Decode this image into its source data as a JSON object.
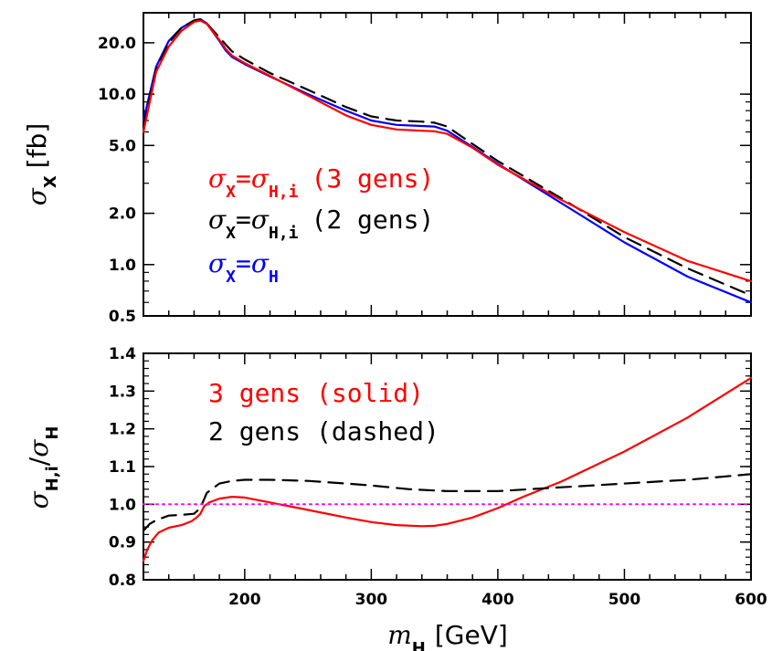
{
  "chart_data": [
    {
      "type": "line",
      "panel": "top",
      "yscale": "log",
      "xlim": [
        120,
        600
      ],
      "ylim": [
        0.5,
        30
      ],
      "yticks": [
        0.5,
        1.0,
        2.0,
        5.0,
        10.0,
        20.0
      ],
      "ytick_labels": [
        "0.5",
        "1.0",
        "2.0",
        "5.0",
        "10.0",
        "20.0"
      ],
      "ylabel": {
        "sym": "σ",
        "sub": "X",
        "unit": "[fb]"
      },
      "legend": [
        {
          "lhs": "σ",
          "lhs_sub": "X",
          "eq": "=",
          "rhs": "σ",
          "rhs_sub": "H,i",
          "note": "(3 gens)",
          "color": "#ff0000"
        },
        {
          "lhs": "σ",
          "lhs_sub": "X",
          "eq": "=",
          "rhs": "σ",
          "rhs_sub": "H,i",
          "note": "(2 gens)",
          "color": "#000000"
        },
        {
          "lhs": "σ",
          "lhs_sub": "X",
          "eq": "=",
          "rhs": "σ",
          "rhs_sub": "H",
          "note": "",
          "color": "#0000ff"
        }
      ],
      "series": [
        {
          "color": "#0000ff",
          "style": "solid",
          "x": [
            120,
            130,
            140,
            150,
            160,
            165,
            170,
            180,
            185,
            190,
            200,
            220,
            250,
            280,
            300,
            320,
            340,
            350,
            360,
            380,
            400,
            450,
            500,
            550,
            600
          ],
          "y": [
            7.0,
            14.5,
            20.5,
            24.5,
            27.0,
            27.5,
            26.0,
            20.5,
            18.0,
            16.5,
            15.0,
            12.7,
            10.0,
            8.0,
            7.0,
            6.6,
            6.5,
            6.45,
            6.1,
            4.9,
            3.9,
            2.3,
            1.35,
            0.85,
            0.6
          ]
        },
        {
          "color": "#000000",
          "style": "dashed",
          "x": [
            120,
            130,
            140,
            150,
            160,
            165,
            170,
            180,
            185,
            190,
            200,
            220,
            250,
            280,
            300,
            320,
            340,
            350,
            360,
            380,
            400,
            450,
            500,
            550,
            600
          ],
          "y": [
            6.5,
            14.0,
            20.0,
            24.5,
            27.0,
            27.5,
            26.0,
            21.5,
            19.5,
            17.8,
            16.0,
            13.3,
            10.6,
            8.4,
            7.4,
            7.0,
            6.9,
            6.8,
            6.45,
            5.1,
            4.05,
            2.45,
            1.45,
            0.95,
            0.66
          ]
        },
        {
          "color": "#ff0000",
          "style": "solid",
          "x": [
            120,
            130,
            140,
            150,
            160,
            165,
            170,
            180,
            185,
            190,
            200,
            220,
            250,
            280,
            300,
            320,
            340,
            350,
            360,
            380,
            400,
            450,
            500,
            550,
            600
          ],
          "y": [
            6.0,
            13.5,
            19.0,
            23.5,
            26.5,
            27.0,
            25.8,
            20.8,
            18.4,
            16.8,
            15.2,
            12.8,
            9.8,
            7.5,
            6.6,
            6.2,
            6.1,
            6.05,
            5.85,
            4.85,
            3.85,
            2.4,
            1.55,
            1.05,
            0.8
          ]
        }
      ]
    },
    {
      "type": "line",
      "panel": "bottom",
      "xlim": [
        120,
        600
      ],
      "ylim": [
        0.8,
        1.4
      ],
      "xticks": [
        200,
        300,
        400,
        500,
        600
      ],
      "xtick_labels": [
        "200",
        "300",
        "400",
        "500",
        "600"
      ],
      "yticks": [
        0.8,
        0.9,
        1.0,
        1.1,
        1.2,
        1.3,
        1.4
      ],
      "ytick_labels": [
        "0.8",
        "0.9",
        "1.0",
        "1.1",
        "1.2",
        "1.3",
        "1.4"
      ],
      "xlabel": {
        "sym": "m",
        "sub": "H",
        "unit": "[GeV]"
      },
      "ylabel": {
        "sym": "σ",
        "sub": "H,i",
        "slash": "/",
        "sym2": "σ",
        "sub2": "H"
      },
      "legend": [
        {
          "text": "3 gens (solid)",
          "color": "#ff0000"
        },
        {
          "text": "2 gens (dashed)",
          "color": "#000000"
        }
      ],
      "series": [
        {
          "color": "#ff0000",
          "style": "solid",
          "x": [
            120,
            123,
            127,
            132,
            140,
            150,
            158,
            162,
            165,
            168,
            172,
            180,
            190,
            200,
            220,
            250,
            280,
            300,
            320,
            340,
            350,
            360,
            380,
            400,
            420,
            450,
            500,
            550,
            600
          ],
          "y": [
            0.85,
            0.88,
            0.905,
            0.925,
            0.938,
            0.945,
            0.955,
            0.965,
            0.975,
            0.995,
            1.005,
            1.015,
            1.02,
            1.018,
            1.005,
            0.985,
            0.965,
            0.953,
            0.945,
            0.942,
            0.943,
            0.948,
            0.965,
            0.99,
            1.02,
            1.06,
            1.14,
            1.23,
            1.335
          ]
        },
        {
          "color": "#000000",
          "style": "dashed",
          "x": [
            120,
            125,
            130,
            140,
            150,
            160,
            165,
            170,
            180,
            190,
            200,
            220,
            250,
            280,
            300,
            330,
            360,
            400,
            450,
            500,
            550,
            600
          ],
          "y": [
            0.93,
            0.948,
            0.958,
            0.97,
            0.972,
            0.975,
            0.99,
            1.03,
            1.055,
            1.062,
            1.065,
            1.065,
            1.062,
            1.055,
            1.05,
            1.04,
            1.035,
            1.035,
            1.045,
            1.055,
            1.065,
            1.08
          ]
        },
        {
          "color": "#ff00ff",
          "style": "dotted",
          "x": [
            120,
            600
          ],
          "y": [
            1.0,
            1.0
          ]
        }
      ]
    }
  ]
}
